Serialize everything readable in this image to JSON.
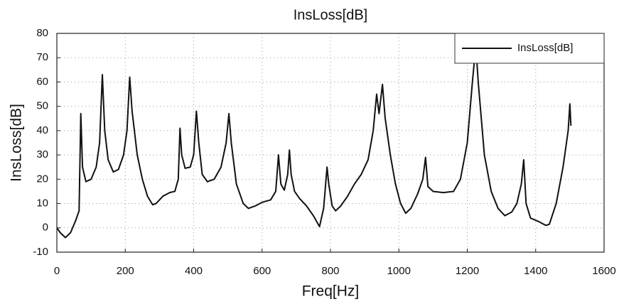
{
  "chart_data": {
    "type": "line",
    "title": "InsLoss[dB]",
    "x_label": "Freq[Hz]",
    "y_label": "InsLoss[dB]",
    "xlim": [
      0,
      1600
    ],
    "ylim": [
      -10,
      80
    ],
    "xticks": [
      0,
      200,
      400,
      600,
      800,
      1000,
      1200,
      1400,
      1600
    ],
    "yticks": [
      -10,
      0,
      10,
      20,
      30,
      40,
      50,
      60,
      70,
      80
    ],
    "grid": true,
    "legend": "upper right",
    "series": [
      {
        "name": "InsLoss[dB]",
        "color": "#111111",
        "x": [
          0,
          10,
          25,
          40,
          55,
          65,
          70,
          75,
          85,
          100,
          115,
          125,
          133,
          140,
          150,
          165,
          180,
          195,
          205,
          213,
          220,
          235,
          250,
          265,
          280,
          290,
          310,
          330,
          345,
          355,
          360,
          365,
          375,
          390,
          400,
          408,
          415,
          425,
          440,
          460,
          480,
          495,
          503,
          510,
          525,
          545,
          560,
          580,
          600,
          625,
          640,
          648,
          655,
          665,
          675,
          680,
          685,
          695,
          710,
          730,
          750,
          768,
          780,
          790,
          795,
          805,
          815,
          830,
          850,
          870,
          890,
          910,
          925,
          935,
          942,
          952,
          960,
          975,
          990,
          1005,
          1020,
          1035,
          1055,
          1070,
          1078,
          1085,
          1100,
          1130,
          1160,
          1180,
          1200,
          1215,
          1225,
          1232,
          1250,
          1270,
          1290,
          1310,
          1330,
          1345,
          1358,
          1365,
          1372,
          1385,
          1410,
          1430,
          1440,
          1460,
          1480,
          1495,
          1500,
          1503
        ],
        "values": [
          0,
          -2,
          -4,
          -2,
          3,
          7,
          47,
          25,
          19,
          20,
          25,
          35,
          63,
          40,
          28,
          23,
          24,
          30,
          40,
          62,
          48,
          30,
          20,
          13,
          9.5,
          10,
          13,
          14.5,
          15,
          20,
          41,
          30,
          24.5,
          25,
          30,
          48,
          35,
          22,
          19,
          20,
          25,
          35,
          47,
          35,
          18,
          10,
          8,
          9,
          10.5,
          11.5,
          15,
          30,
          18,
          15.5,
          22,
          32,
          22,
          15,
          12,
          9,
          5,
          0.5,
          8,
          25,
          18,
          9,
          7,
          9,
          13,
          18,
          22,
          28,
          40,
          55,
          47,
          59,
          45,
          30,
          18,
          10,
          6,
          8,
          14,
          20,
          29,
          17,
          15,
          14.5,
          15,
          20,
          35,
          60,
          75,
          60,
          30,
          15,
          8,
          5,
          6.5,
          10,
          18,
          28,
          10,
          4,
          2.5,
          1,
          1.5,
          10,
          25,
          40,
          51,
          42
        ]
      }
    ]
  }
}
